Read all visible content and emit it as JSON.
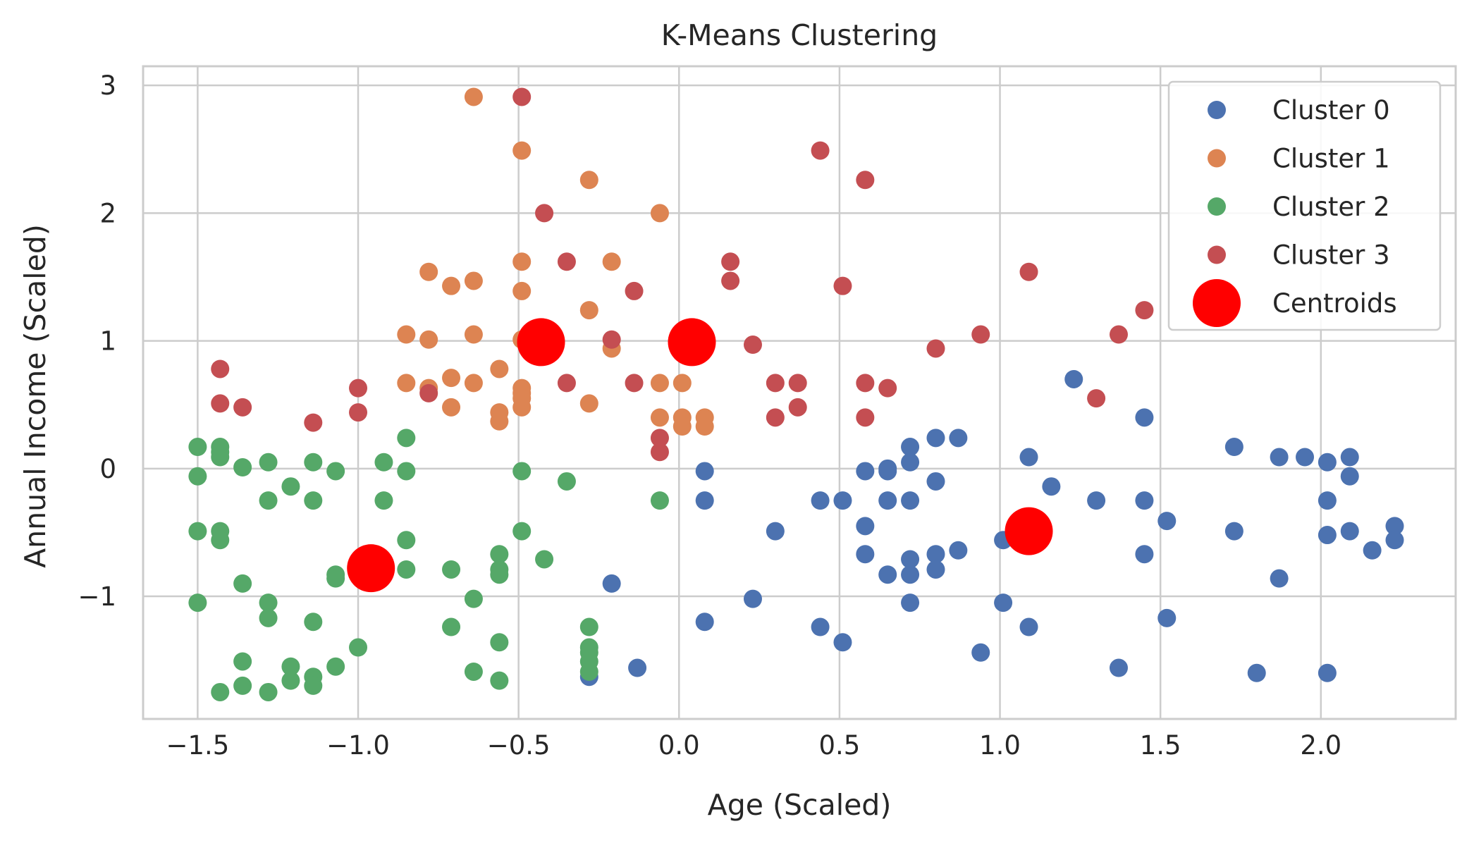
{
  "chart_data": {
    "type": "scatter",
    "title": "K-Means Clustering",
    "xlabel": "Age (Scaled)",
    "ylabel": "Annual Income (Scaled)",
    "xlim": [
      -1.67,
      2.42
    ],
    "ylim": [
      -1.96,
      3.15
    ],
    "xticks": [
      -1.5,
      -1.0,
      -0.5,
      0.0,
      0.5,
      1.0,
      1.5,
      2.0
    ],
    "xtick_labels": [
      "−1.5",
      "−1.0",
      "−0.5",
      "0.0",
      "0.5",
      "1.0",
      "1.5",
      "2.0"
    ],
    "yticks": [
      -1,
      0,
      1,
      2,
      3
    ],
    "ytick_labels": [
      "−1",
      "0",
      "1",
      "2",
      "3"
    ],
    "grid": true,
    "legend_position": "top-right",
    "series": [
      {
        "name": "Cluster 0",
        "color": "#4c72b0",
        "points": [
          [
            -0.28,
            -1.63
          ],
          [
            -0.21,
            -0.9
          ],
          [
            -0.13,
            -1.56
          ],
          [
            0.08,
            -0.02
          ],
          [
            0.08,
            -0.25
          ],
          [
            0.08,
            -1.2
          ],
          [
            0.23,
            -1.02
          ],
          [
            0.3,
            -0.49
          ],
          [
            0.44,
            -0.25
          ],
          [
            0.44,
            -1.24
          ],
          [
            0.51,
            -0.25
          ],
          [
            0.51,
            -1.36
          ],
          [
            0.58,
            -0.02
          ],
          [
            0.58,
            -0.45
          ],
          [
            0.58,
            -0.67
          ],
          [
            0.65,
            -0.02
          ],
          [
            0.65,
            0.0
          ],
          [
            0.65,
            -0.25
          ],
          [
            0.65,
            -0.83
          ],
          [
            0.72,
            0.17
          ],
          [
            0.72,
            0.05
          ],
          [
            0.72,
            -0.25
          ],
          [
            0.72,
            -0.71
          ],
          [
            0.72,
            -0.83
          ],
          [
            0.72,
            -1.05
          ],
          [
            0.8,
            0.24
          ],
          [
            0.8,
            -0.1
          ],
          [
            0.8,
            -0.67
          ],
          [
            0.8,
            -0.79
          ],
          [
            0.87,
            0.24
          ],
          [
            0.87,
            -0.64
          ],
          [
            0.94,
            -1.44
          ],
          [
            1.01,
            -0.56
          ],
          [
            1.01,
            -1.05
          ],
          [
            1.09,
            0.09
          ],
          [
            1.09,
            -1.24
          ],
          [
            1.16,
            -0.14
          ],
          [
            1.23,
            0.7
          ],
          [
            1.3,
            -0.25
          ],
          [
            1.37,
            -1.56
          ],
          [
            1.45,
            0.4
          ],
          [
            1.45,
            -0.25
          ],
          [
            1.45,
            -0.67
          ],
          [
            1.52,
            -0.41
          ],
          [
            1.52,
            -1.17
          ],
          [
            1.73,
            0.17
          ],
          [
            1.73,
            -0.49
          ],
          [
            1.8,
            -1.6
          ],
          [
            1.87,
            0.09
          ],
          [
            1.87,
            -0.86
          ],
          [
            1.95,
            0.09
          ],
          [
            2.02,
            0.05
          ],
          [
            2.02,
            -0.25
          ],
          [
            2.02,
            -0.52
          ],
          [
            2.02,
            -1.6
          ],
          [
            2.09,
            0.09
          ],
          [
            2.09,
            -0.06
          ],
          [
            2.09,
            -0.49
          ],
          [
            2.16,
            -0.64
          ],
          [
            2.23,
            -0.45
          ],
          [
            2.23,
            -0.56
          ]
        ]
      },
      {
        "name": "Cluster 1",
        "color": "#dd8452",
        "points": [
          [
            -0.64,
            2.91
          ],
          [
            -0.49,
            2.49
          ],
          [
            -0.28,
            2.26
          ],
          [
            -0.06,
            2.0
          ],
          [
            -0.78,
            1.54
          ],
          [
            -0.71,
            1.43
          ],
          [
            -0.64,
            1.47
          ],
          [
            -0.49,
            1.62
          ],
          [
            -0.49,
            1.39
          ],
          [
            -0.21,
            1.62
          ],
          [
            -0.28,
            1.24
          ],
          [
            -0.85,
            1.05
          ],
          [
            -0.78,
            1.01
          ],
          [
            -0.64,
            1.05
          ],
          [
            -0.49,
            1.01
          ],
          [
            -0.21,
            0.94
          ],
          [
            -0.85,
            0.67
          ],
          [
            -0.78,
            0.63
          ],
          [
            -0.71,
            0.71
          ],
          [
            -0.64,
            0.67
          ],
          [
            -0.56,
            0.78
          ],
          [
            -0.49,
            0.63
          ],
          [
            -0.49,
            0.59
          ],
          [
            -0.49,
            0.55
          ],
          [
            -0.49,
            0.48
          ],
          [
            -0.28,
            0.51
          ],
          [
            -0.71,
            0.48
          ],
          [
            -0.56,
            0.44
          ],
          [
            -0.56,
            0.37
          ],
          [
            -0.06,
            0.67
          ],
          [
            0.01,
            0.67
          ],
          [
            -0.06,
            0.4
          ],
          [
            0.01,
            0.4
          ],
          [
            0.08,
            0.4
          ],
          [
            0.01,
            0.33
          ],
          [
            0.08,
            0.33
          ]
        ]
      },
      {
        "name": "Cluster 2",
        "color": "#55a868",
        "points": [
          [
            -1.5,
            0.17
          ],
          [
            -1.5,
            -0.06
          ],
          [
            -1.5,
            -0.49
          ],
          [
            -1.5,
            -1.05
          ],
          [
            -1.43,
            0.17
          ],
          [
            -1.43,
            0.13
          ],
          [
            -1.43,
            0.09
          ],
          [
            -1.43,
            -0.49
          ],
          [
            -1.43,
            -0.56
          ],
          [
            -1.43,
            -1.75
          ],
          [
            -1.36,
            0.01
          ],
          [
            -1.36,
            -0.9
          ],
          [
            -1.36,
            -1.51
          ],
          [
            -1.36,
            -1.7
          ],
          [
            -1.28,
            0.05
          ],
          [
            -1.28,
            -0.25
          ],
          [
            -1.28,
            -1.05
          ],
          [
            -1.28,
            -1.17
          ],
          [
            -1.28,
            -1.75
          ],
          [
            -1.21,
            -0.14
          ],
          [
            -1.21,
            -1.55
          ],
          [
            -1.21,
            -1.66
          ],
          [
            -1.14,
            0.05
          ],
          [
            -1.14,
            -0.25
          ],
          [
            -1.14,
            -1.2
          ],
          [
            -1.14,
            -1.63
          ],
          [
            -1.14,
            -1.7
          ],
          [
            -1.07,
            -0.02
          ],
          [
            -1.07,
            -0.83
          ],
          [
            -1.07,
            -0.86
          ],
          [
            -1.07,
            -1.55
          ],
          [
            -1.0,
            -1.4
          ],
          [
            -0.92,
            0.05
          ],
          [
            -0.92,
            -0.25
          ],
          [
            -0.85,
            0.24
          ],
          [
            -0.85,
            -0.02
          ],
          [
            -0.85,
            -0.56
          ],
          [
            -0.85,
            -0.79
          ],
          [
            -0.71,
            -0.79
          ],
          [
            -0.71,
            -1.24
          ],
          [
            -0.64,
            -1.02
          ],
          [
            -0.64,
            -1.59
          ],
          [
            -0.56,
            -0.67
          ],
          [
            -0.56,
            -0.79
          ],
          [
            -0.56,
            -0.83
          ],
          [
            -0.56,
            -1.36
          ],
          [
            -0.56,
            -1.66
          ],
          [
            -0.49,
            -0.02
          ],
          [
            -0.49,
            -0.49
          ],
          [
            -0.42,
            -0.71
          ],
          [
            -0.35,
            -0.1
          ],
          [
            -0.28,
            -1.24
          ],
          [
            -0.28,
            -1.4
          ],
          [
            -0.28,
            -1.44
          ],
          [
            -0.28,
            -1.51
          ],
          [
            -0.28,
            -1.59
          ],
          [
            -0.06,
            -0.25
          ]
        ]
      },
      {
        "name": "Cluster 3",
        "color": "#c44e52",
        "points": [
          [
            -0.49,
            2.91
          ],
          [
            0.44,
            2.49
          ],
          [
            0.58,
            2.26
          ],
          [
            -0.42,
            2.0
          ],
          [
            -0.35,
            1.62
          ],
          [
            0.16,
            1.62
          ],
          [
            1.09,
            1.54
          ],
          [
            0.16,
            1.47
          ],
          [
            -0.14,
            1.39
          ],
          [
            0.51,
            1.43
          ],
          [
            1.45,
            1.24
          ],
          [
            0.94,
            1.05
          ],
          [
            1.37,
            1.05
          ],
          [
            -0.21,
            1.01
          ],
          [
            0.23,
            0.97
          ],
          [
            0.8,
            0.94
          ],
          [
            -1.43,
            0.78
          ],
          [
            -1.0,
            0.63
          ],
          [
            -0.78,
            0.59
          ],
          [
            -0.35,
            0.67
          ],
          [
            -0.14,
            0.67
          ],
          [
            0.3,
            0.67
          ],
          [
            0.37,
            0.67
          ],
          [
            0.58,
            0.67
          ],
          [
            0.65,
            0.63
          ],
          [
            1.3,
            0.55
          ],
          [
            -1.43,
            0.51
          ],
          [
            -1.36,
            0.48
          ],
          [
            0.37,
            0.48
          ],
          [
            -1.0,
            0.44
          ],
          [
            0.3,
            0.4
          ],
          [
            0.58,
            0.4
          ],
          [
            -1.14,
            0.36
          ],
          [
            -0.06,
            0.24
          ],
          [
            -0.06,
            0.13
          ]
        ]
      },
      {
        "name": "Centroids",
        "color": "#ff0000",
        "points": [
          [
            -0.43,
            0.99
          ],
          [
            0.04,
            0.99
          ],
          [
            -0.96,
            -0.78
          ],
          [
            1.09,
            -0.49
          ]
        ]
      }
    ]
  }
}
